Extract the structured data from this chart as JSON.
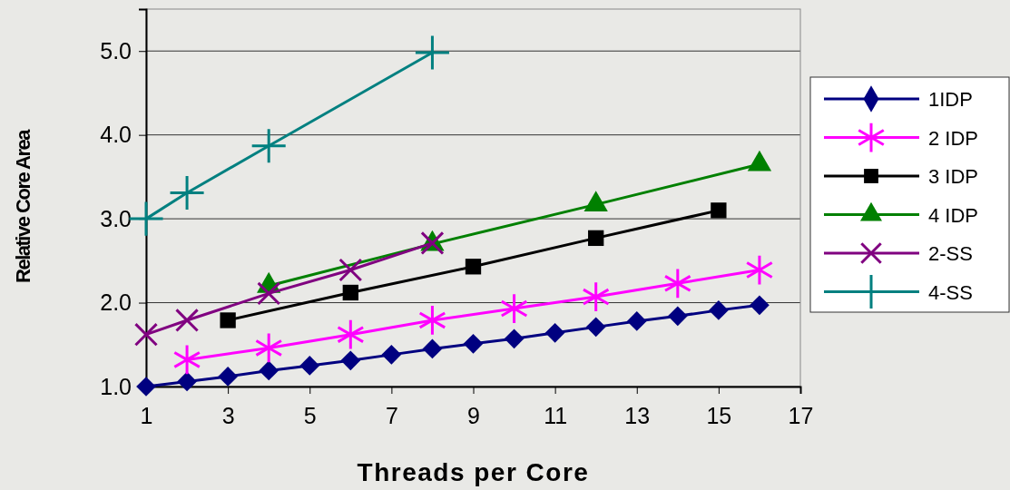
{
  "chart_data": {
    "type": "line",
    "xlabel": "Threads per Core",
    "ylabel": "Relative Core Area",
    "xlim": [
      1,
      17
    ],
    "xticks": [
      1,
      3,
      5,
      7,
      9,
      11,
      13,
      15,
      17
    ],
    "ylim": [
      1,
      5.5
    ],
    "yticks": [
      {
        "value": 1,
        "label": "1.0"
      },
      {
        "value": 2,
        "label": "2.0"
      },
      {
        "value": 3,
        "label": "3.0"
      },
      {
        "value": 4,
        "label": "4.0"
      },
      {
        "value": 5,
        "label": "5.0"
      }
    ],
    "grid": "y",
    "legend": "right",
    "line_style": "solid",
    "series": [
      {
        "name": "1IDP",
        "color": "#000080",
        "marker": "diamond",
        "x": [
          1,
          2,
          3,
          4,
          5,
          6,
          7,
          8,
          9,
          10,
          11,
          12,
          13,
          14,
          15,
          16
        ],
        "values": [
          1.0,
          1.06,
          1.12,
          1.19,
          1.25,
          1.31,
          1.38,
          1.45,
          1.51,
          1.57,
          1.64,
          1.71,
          1.78,
          1.84,
          1.91,
          1.97
        ]
      },
      {
        "name": "2 IDP",
        "color": "#ff00ff",
        "marker": "star",
        "x": [
          2,
          4,
          6,
          8,
          10,
          12,
          14,
          16
        ],
        "values": [
          1.32,
          1.46,
          1.62,
          1.79,
          1.93,
          2.07,
          2.23,
          2.39
        ]
      },
      {
        "name": "3 IDP",
        "color": "#000000",
        "marker": "square",
        "x": [
          3,
          6,
          9,
          12,
          15
        ],
        "values": [
          1.79,
          2.12,
          2.43,
          2.77,
          3.1
        ]
      },
      {
        "name": "4 IDP",
        "color": "#008000",
        "marker": "triangle",
        "x": [
          4,
          8,
          12,
          16
        ],
        "values": [
          2.2,
          2.7,
          3.17,
          3.65
        ]
      },
      {
        "name": "2-SS",
        "color": "#800080",
        "marker": "x",
        "x": [
          1,
          2,
          4,
          6,
          8
        ],
        "values": [
          1.62,
          1.79,
          2.11,
          2.39,
          2.71
        ]
      },
      {
        "name": "4-SS",
        "color": "#008080",
        "marker": "cross",
        "x": [
          1,
          2,
          4,
          8
        ],
        "values": [
          3.0,
          3.31,
          3.87,
          4.98
        ]
      }
    ]
  }
}
